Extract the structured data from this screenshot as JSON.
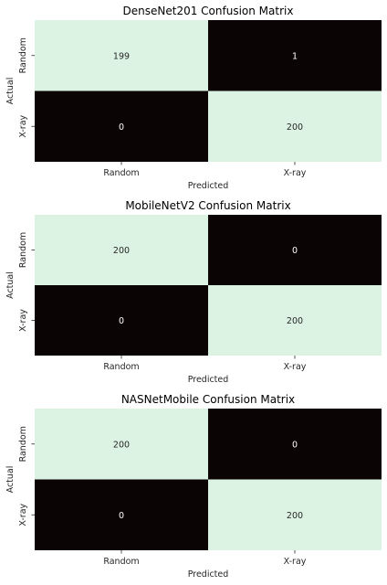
{
  "figure": {
    "background": "#ffffff",
    "cell_colors": {
      "high": "#dcf3e4",
      "low": "#0b0405",
      "text_on_high": "#262626",
      "text_on_low": "#ffffff"
    }
  },
  "chart_data": [
    {
      "type": "heatmap",
      "title": "DenseNet201 Confusion Matrix",
      "xlabel": "Predicted",
      "ylabel": "Actual",
      "x_categories": [
        "Random",
        "X-ray"
      ],
      "y_categories": [
        "Random",
        "X-ray"
      ],
      "values": [
        [
          199,
          1
        ],
        [
          0,
          200
        ]
      ],
      "colorbar": false
    },
    {
      "type": "heatmap",
      "title": "MobileNetV2 Confusion Matrix",
      "xlabel": "Predicted",
      "ylabel": "Actual",
      "x_categories": [
        "Random",
        "X-ray"
      ],
      "y_categories": [
        "Random",
        "X-ray"
      ],
      "values": [
        [
          200,
          0
        ],
        [
          0,
          200
        ]
      ],
      "colorbar": false
    },
    {
      "type": "heatmap",
      "title": "NASNetMobile Confusion Matrix",
      "xlabel": "Predicted",
      "ylabel": "Actual",
      "x_categories": [
        "Random",
        "X-ray"
      ],
      "y_categories": [
        "Random",
        "X-ray"
      ],
      "values": [
        [
          200,
          0
        ],
        [
          0,
          200
        ]
      ],
      "colorbar": false
    }
  ]
}
